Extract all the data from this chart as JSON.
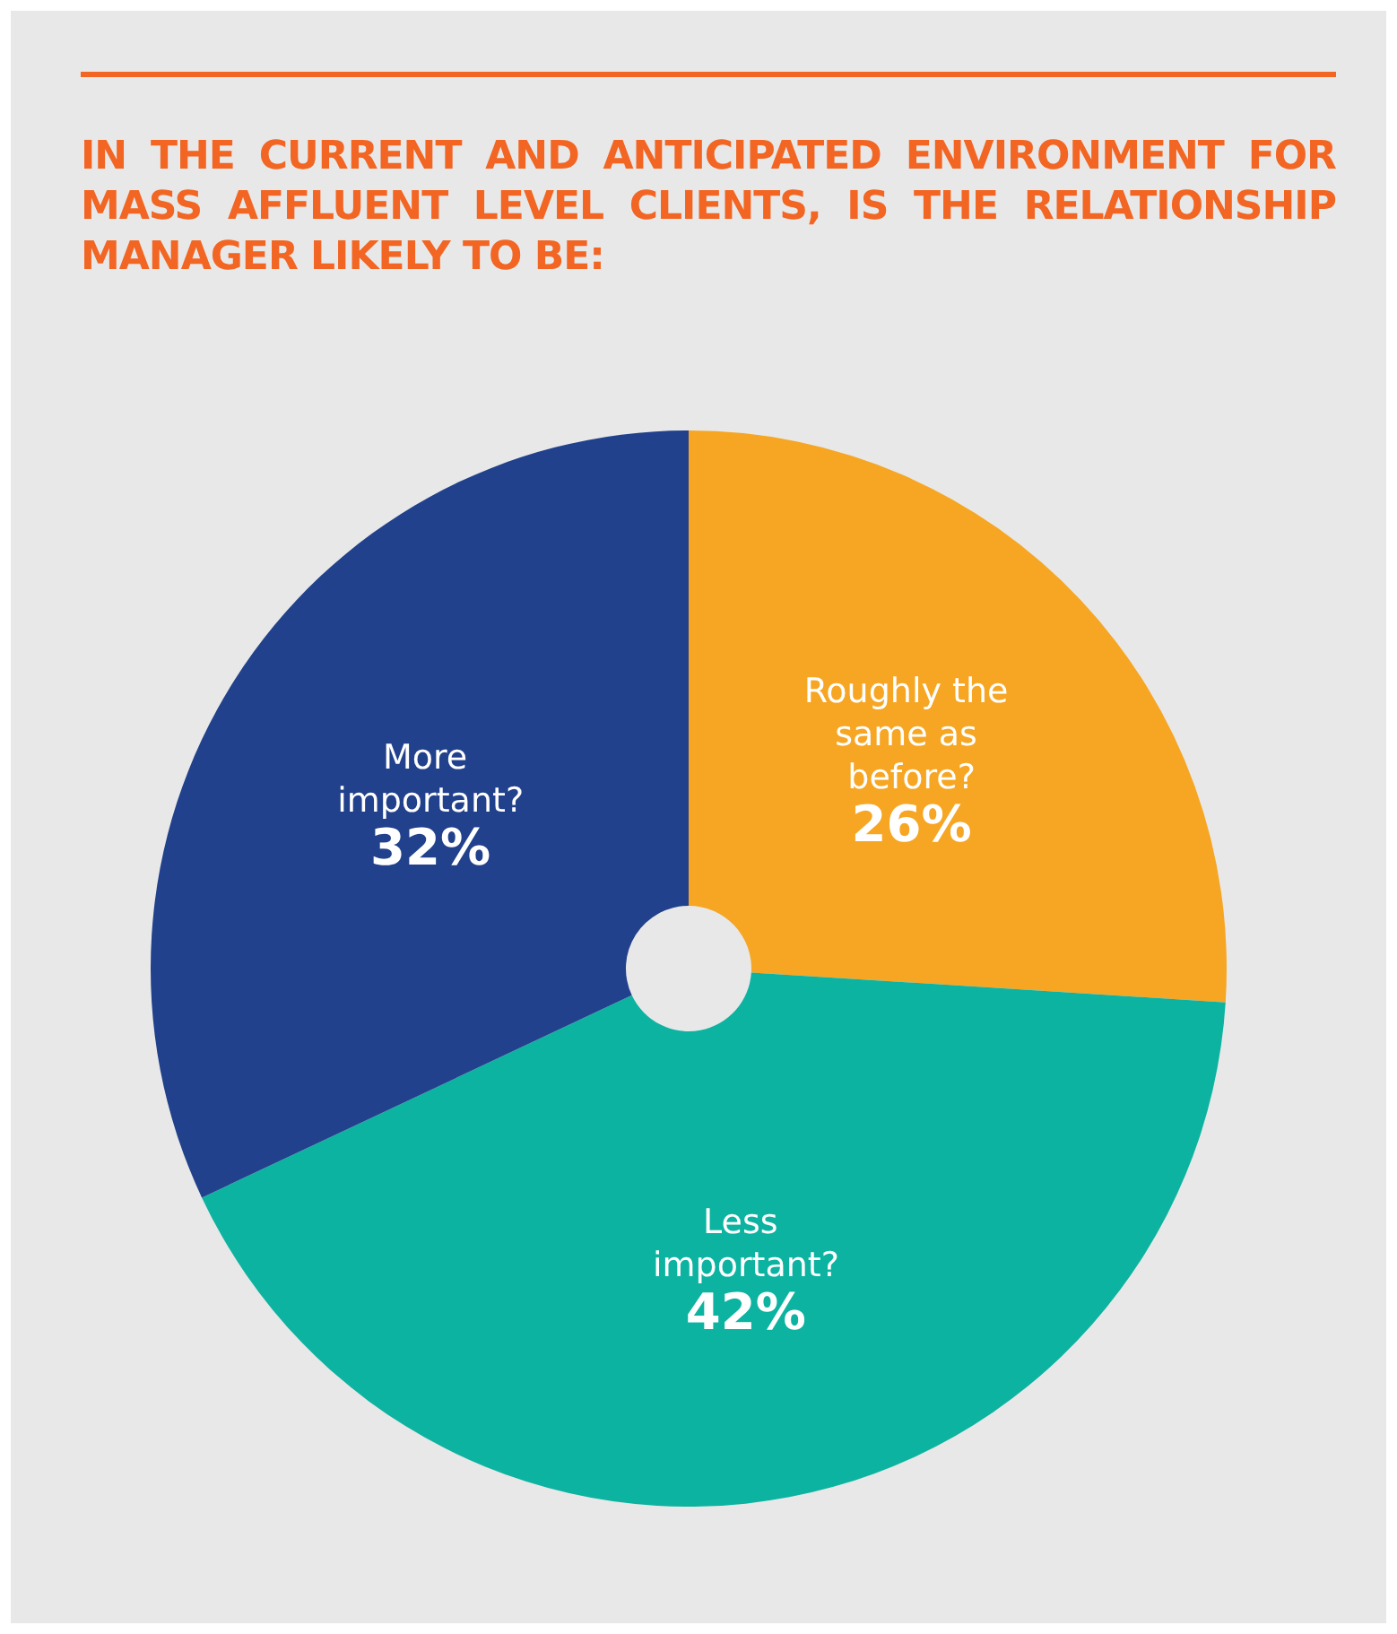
{
  "chart_data": {
    "type": "pie",
    "title": "IN THE CURRENT AND ANTICIPATED ENVIRONMENT FOR MASS AFFLUENT LEVEL CLIENTS, IS THE RELATIONSHIP MANAGER LIKELY TO BE:",
    "categories": [
      "Roughly the same as before?",
      "Less important?",
      "More important?"
    ],
    "values": [
      26,
      42,
      32
    ],
    "value_labels": [
      "26%",
      "42%",
      "32%"
    ],
    "colors": [
      "#f6a623",
      "#0db3a1",
      "#22418c"
    ]
  }
}
